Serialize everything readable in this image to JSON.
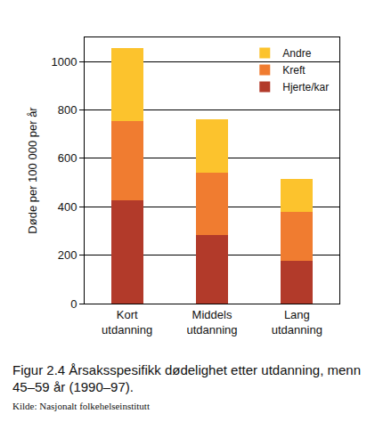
{
  "chart_data": {
    "type": "bar",
    "stacked": true,
    "categories": [
      "Kort utdanning",
      "Middels utdanning",
      "Lang utdanning"
    ],
    "series": [
      {
        "name": "Hjerte/kar",
        "color": "#b23a2a",
        "values": [
          425,
          285,
          175
        ]
      },
      {
        "name": "Kreft",
        "color": "#f07c30",
        "values": [
          330,
          255,
          205
        ]
      },
      {
        "name": "Andre",
        "color": "#fcc32d",
        "values": [
          300,
          220,
          135
        ]
      }
    ],
    "ylabel": "Døde per 100 000 per år",
    "ylim": [
      0,
      1100
    ],
    "yticks": [
      0,
      200,
      400,
      600,
      800,
      1000
    ],
    "grid": true,
    "legend": "top right",
    "annotations": [
      "Figur 2.4  Årsaksspesifikk dødelighet etter utdanning, menn 45–59 år (1990–97).",
      "Kilde: Nasjonalt folkehelseinstitutt"
    ]
  }
}
